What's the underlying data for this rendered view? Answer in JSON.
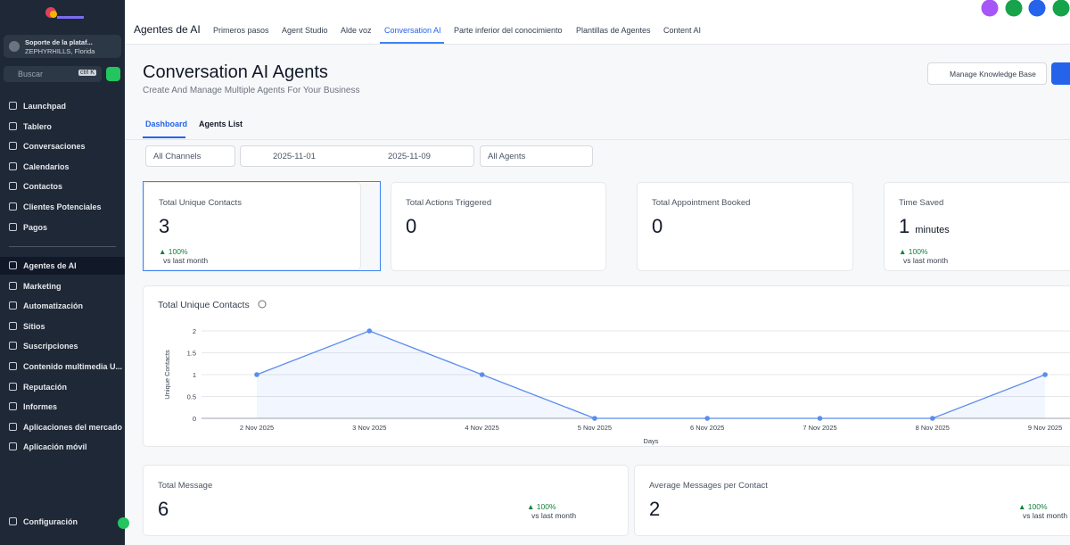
{
  "sidebar": {
    "account": {
      "name": "Soporte de la plataf...",
      "location": "ZEPHYRHILLS, Florida"
    },
    "search": {
      "placeholder": "Buscar",
      "shortcut": "ctrl K"
    },
    "nav": [
      "Launchpad",
      "Tablero",
      "Conversaciones",
      "Calendarios",
      "Contactos",
      "Clientes Potenciales",
      "Pagos"
    ],
    "nav2": [
      "Agentes de AI",
      "Marketing",
      "Automatización",
      "Sitios",
      "Suscripciones",
      "Contenido multimedia U...",
      "Reputación",
      "Informes",
      "Aplicaciones del mercado",
      "Aplicación móvil"
    ],
    "settings": "Configuración"
  },
  "topbar": {
    "title": "Agentes de AI",
    "tabs": [
      "Primeros pasos",
      "Agent Studio",
      "Alde voz",
      "Conversation AI",
      "Parte inferior del conocimiento",
      "Plantillas de Agentes",
      "Content AI"
    ]
  },
  "header": {
    "title": "Conversation AI Agents",
    "subtitle": "Create And Manage Multiple Agents For Your Business",
    "button": "Manage Knowledge Base"
  },
  "subtabs": [
    "Dashboard",
    "Agents List"
  ],
  "filters": {
    "channel": "All Channels",
    "start": "2025-11-01",
    "end": "2025-11-09",
    "agent": "All Agents"
  },
  "cards": [
    {
      "label": "Total Unique Contacts",
      "value": 3,
      "change": "100%",
      "note": "vs last month"
    },
    {
      "label": "Total Actions Triggered",
      "value": 0
    },
    {
      "label": "Total Appointment Booked",
      "value": 0
    },
    {
      "label": "Time Saved",
      "value": 1,
      "unit": "minutes",
      "change": "100%",
      "note": "vs last month"
    }
  ],
  "chart_data": {
    "type": "line",
    "title": "Total Unique Contacts",
    "y_label": "Unique Contacts",
    "x_label": "Days",
    "categories": [
      "2 Nov 2025",
      "3 Nov 2025",
      "4 Nov 2025",
      "5 Nov 2025",
      "6 Nov 2025",
      "7 Nov 2025",
      "8 Nov 2025",
      "9 Nov 2025"
    ],
    "values": [
      1,
      2,
      1,
      0,
      0,
      0,
      0,
      1
    ],
    "color": "#5b8def",
    "ylim": [
      0,
      2
    ],
    "yticks": [
      0,
      0.5,
      1,
      1.5,
      2
    ],
    "grid": true
  },
  "bottom_cards": [
    {
      "label": "Total Message",
      "value": 6,
      "change": "100%",
      "note": "vs last month"
    },
    {
      "label": "Average Messages per Contact",
      "value": 2,
      "change": "100%",
      "note": "vs last month"
    }
  ]
}
